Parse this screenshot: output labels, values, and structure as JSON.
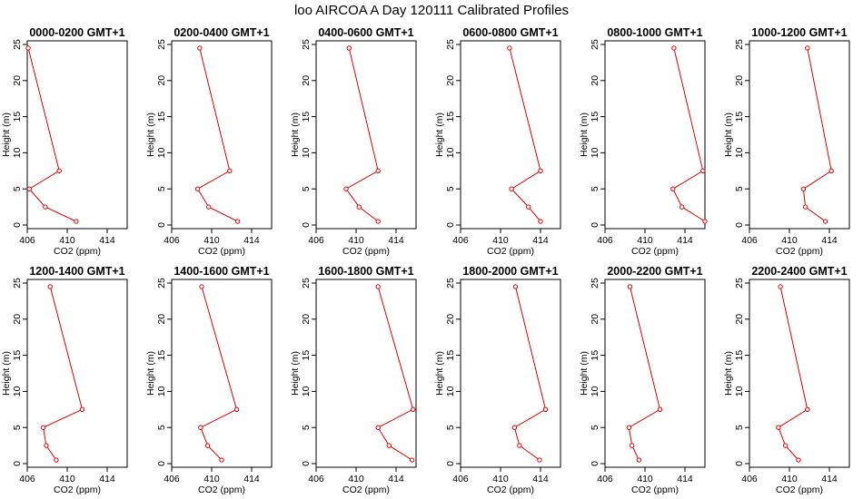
{
  "main_title": "loo AIRCOA A  Day 120111  Calibrated Profiles",
  "colors": {
    "series": "#e00000",
    "axes": "#000000",
    "background": "#ffffff"
  },
  "chart_data": [
    {
      "type": "line",
      "title": "0000-0200 GMT+1",
      "xlabel": "CO2 (ppm)",
      "ylabel": "Height (m)",
      "xlim": [
        406,
        416
      ],
      "ylim": [
        0,
        25
      ],
      "xticks": [
        406,
        410,
        414
      ],
      "yticks": [
        0,
        5,
        10,
        15,
        20,
        25
      ],
      "grid": false,
      "series": [
        {
          "x": [
            406.1,
            409.2,
            406.2,
            407.8,
            410.9
          ],
          "y": [
            24.5,
            7.5,
            5.0,
            2.5,
            0.5
          ]
        }
      ]
    },
    {
      "type": "line",
      "title": "0200-0400 GMT+1",
      "xlabel": "CO2 (ppm)",
      "ylabel": "Height (m)",
      "xlim": [
        406,
        416
      ],
      "ylim": [
        0,
        25
      ],
      "xticks": [
        406,
        410,
        414
      ],
      "yticks": [
        0,
        5,
        10,
        15,
        20,
        25
      ],
      "grid": false,
      "series": [
        {
          "x": [
            408.8,
            411.8,
            408.6,
            409.7,
            412.6
          ],
          "y": [
            24.5,
            7.5,
            5.0,
            2.5,
            0.5
          ]
        }
      ]
    },
    {
      "type": "line",
      "title": "0400-0600 GMT+1",
      "xlabel": "CO2 (ppm)",
      "ylabel": "Height (m)",
      "xlim": [
        406,
        416
      ],
      "ylim": [
        0,
        25
      ],
      "xticks": [
        406,
        410,
        414
      ],
      "yticks": [
        0,
        5,
        10,
        15,
        20,
        25
      ],
      "grid": false,
      "series": [
        {
          "x": [
            409.3,
            412.2,
            409.0,
            410.3,
            412.2
          ],
          "y": [
            24.5,
            7.5,
            5.0,
            2.5,
            0.5
          ]
        }
      ]
    },
    {
      "type": "line",
      "title": "0600-0800 GMT+1",
      "xlabel": "CO2 (ppm)",
      "ylabel": "Height (m)",
      "xlim": [
        406,
        416
      ],
      "ylim": [
        0,
        25
      ],
      "xticks": [
        406,
        410,
        414
      ],
      "yticks": [
        0,
        5,
        10,
        15,
        20,
        25
      ],
      "grid": false,
      "series": [
        {
          "x": [
            410.9,
            414.0,
            411.1,
            412.8,
            414.0
          ],
          "y": [
            24.5,
            7.5,
            5.0,
            2.5,
            0.5
          ]
        }
      ]
    },
    {
      "type": "line",
      "title": "0800-1000 GMT+1",
      "xlabel": "CO2 (ppm)",
      "ylabel": "Height (m)",
      "xlim": [
        406,
        416
      ],
      "ylim": [
        0,
        25
      ],
      "xticks": [
        406,
        410,
        414
      ],
      "yticks": [
        0,
        5,
        10,
        15,
        20,
        25
      ],
      "grid": false,
      "series": [
        {
          "x": [
            412.9,
            415.8,
            412.8,
            413.7,
            416.0
          ],
          "y": [
            24.5,
            7.5,
            5.0,
            2.5,
            0.5
          ]
        }
      ]
    },
    {
      "type": "line",
      "title": "1000-1200 GMT+1",
      "xlabel": "CO2 (ppm)",
      "ylabel": "Height (m)",
      "xlim": [
        406,
        416
      ],
      "ylim": [
        0,
        25
      ],
      "xticks": [
        406,
        410,
        414
      ],
      "yticks": [
        0,
        5,
        10,
        15,
        20,
        25
      ],
      "grid": false,
      "series": [
        {
          "x": [
            411.8,
            414.2,
            411.4,
            411.6,
            413.6
          ],
          "y": [
            24.5,
            7.5,
            5.0,
            2.5,
            0.5
          ]
        }
      ]
    },
    {
      "type": "line",
      "title": "1200-1400 GMT+1",
      "xlabel": "CO2 (ppm)",
      "ylabel": "Height (m)",
      "xlim": [
        406,
        416
      ],
      "ylim": [
        0,
        25
      ],
      "xticks": [
        406,
        410,
        414
      ],
      "yticks": [
        0,
        5,
        10,
        15,
        20,
        25
      ],
      "grid": false,
      "series": [
        {
          "x": [
            408.3,
            411.5,
            407.6,
            407.9,
            408.9
          ],
          "y": [
            24.5,
            7.5,
            5.0,
            2.5,
            0.5
          ]
        }
      ]
    },
    {
      "type": "line",
      "title": "1400-1600 GMT+1",
      "xlabel": "CO2 (ppm)",
      "ylabel": "Height (m)",
      "xlim": [
        406,
        416
      ],
      "ylim": [
        0,
        25
      ],
      "xticks": [
        406,
        410,
        414
      ],
      "yticks": [
        0,
        5,
        10,
        15,
        20,
        25
      ],
      "grid": false,
      "series": [
        {
          "x": [
            409.0,
            412.5,
            408.9,
            409.6,
            411.0
          ],
          "y": [
            24.5,
            7.5,
            5.0,
            2.5,
            0.5
          ]
        }
      ]
    },
    {
      "type": "line",
      "title": "1600-1800 GMT+1",
      "xlabel": "CO2 (ppm)",
      "ylabel": "Height (m)",
      "xlim": [
        406,
        416
      ],
      "ylim": [
        0,
        25
      ],
      "xticks": [
        406,
        410,
        414
      ],
      "yticks": [
        0,
        5,
        10,
        15,
        20,
        25
      ],
      "grid": false,
      "series": [
        {
          "x": [
            412.2,
            415.7,
            412.2,
            413.3,
            415.6
          ],
          "y": [
            24.5,
            7.5,
            5.0,
            2.5,
            0.5
          ]
        }
      ]
    },
    {
      "type": "line",
      "title": "1800-2000 GMT+1",
      "xlabel": "CO2 (ppm)",
      "ylabel": "Height (m)",
      "xlim": [
        406,
        416
      ],
      "ylim": [
        0,
        25
      ],
      "xticks": [
        406,
        410,
        414
      ],
      "yticks": [
        0,
        5,
        10,
        15,
        20,
        25
      ],
      "grid": false,
      "series": [
        {
          "x": [
            411.5,
            414.5,
            411.4,
            411.9,
            413.9
          ],
          "y": [
            24.5,
            7.5,
            5.0,
            2.5,
            0.5
          ]
        }
      ]
    },
    {
      "type": "line",
      "title": "2000-2200 GMT+1",
      "xlabel": "CO2 (ppm)",
      "ylabel": "Height (m)",
      "xlim": [
        406,
        416
      ],
      "ylim": [
        0,
        25
      ],
      "xticks": [
        406,
        410,
        414
      ],
      "yticks": [
        0,
        5,
        10,
        15,
        20,
        25
      ],
      "grid": false,
      "series": [
        {
          "x": [
            408.5,
            411.5,
            408.4,
            408.7,
            409.4
          ],
          "y": [
            24.5,
            7.5,
            5.0,
            2.5,
            0.5
          ]
        }
      ]
    },
    {
      "type": "line",
      "title": "2200-2400 GMT+1",
      "xlabel": "CO2 (ppm)",
      "ylabel": "Height (m)",
      "xlim": [
        406,
        416
      ],
      "ylim": [
        0,
        25
      ],
      "xticks": [
        406,
        410,
        414
      ],
      "yticks": [
        0,
        5,
        10,
        15,
        20,
        25
      ],
      "grid": false,
      "series": [
        {
          "x": [
            409.1,
            411.8,
            408.9,
            409.6,
            410.9
          ],
          "y": [
            24.5,
            7.5,
            5.0,
            2.5,
            0.5
          ]
        }
      ]
    }
  ]
}
